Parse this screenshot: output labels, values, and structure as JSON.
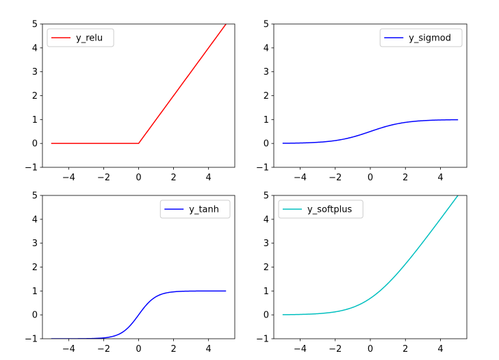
{
  "chart_data": [
    {
      "type": "line",
      "function": "relu",
      "series": [
        {
          "name": "y_relu",
          "color": "#ff0000"
        }
      ],
      "x": [
        -5,
        -4,
        -3,
        -2,
        -1,
        0,
        1,
        2,
        3,
        4,
        5
      ],
      "y": [
        0,
        0,
        0,
        0,
        0,
        0,
        1,
        2,
        3,
        4,
        5
      ],
      "xlim": [
        -5.5,
        5.5
      ],
      "ylim": [
        -1,
        5
      ],
      "xticks": [
        -4,
        -2,
        0,
        2,
        4
      ],
      "yticks": [
        -1,
        0,
        1,
        2,
        3,
        4,
        5
      ],
      "xtick_labels": [
        "−4",
        "−2",
        "0",
        "2",
        "4"
      ],
      "ytick_labels": [
        "−1",
        "0",
        "1",
        "2",
        "3",
        "4",
        "5"
      ],
      "legend_position": "upper-left",
      "grid": false
    },
    {
      "type": "line",
      "function": "sigmoid",
      "series": [
        {
          "name": "y_sigmod",
          "color": "#0000ff"
        }
      ],
      "x": [
        -5,
        -4,
        -3,
        -2,
        -1,
        0,
        1,
        2,
        3,
        4,
        5
      ],
      "y": [
        0.007,
        0.018,
        0.047,
        0.119,
        0.269,
        0.5,
        0.731,
        0.881,
        0.953,
        0.982,
        0.993
      ],
      "xlim": [
        -5.5,
        5.5
      ],
      "ylim": [
        -1,
        5
      ],
      "xticks": [
        -4,
        -2,
        0,
        2,
        4
      ],
      "yticks": [
        -1,
        0,
        1,
        2,
        3,
        4,
        5
      ],
      "xtick_labels": [
        "−4",
        "−2",
        "0",
        "2",
        "4"
      ],
      "ytick_labels": [
        "−1",
        "0",
        "1",
        "2",
        "3",
        "4",
        "5"
      ],
      "legend_position": "upper-right",
      "grid": false
    },
    {
      "type": "line",
      "function": "tanh",
      "series": [
        {
          "name": "y_tanh",
          "color": "#0000ff"
        }
      ],
      "x": [
        -5,
        -4,
        -3,
        -2,
        -1,
        0,
        1,
        2,
        3,
        4,
        5
      ],
      "y": [
        -1.0,
        -0.999,
        -0.995,
        -0.964,
        -0.762,
        0,
        0.762,
        0.964,
        0.995,
        0.999,
        1.0
      ],
      "xlim": [
        -5.5,
        5.5
      ],
      "ylim": [
        -1,
        5
      ],
      "xticks": [
        -4,
        -2,
        0,
        2,
        4
      ],
      "yticks": [
        -1,
        0,
        1,
        2,
        3,
        4,
        5
      ],
      "xtick_labels": [
        "−4",
        "−2",
        "0",
        "2",
        "4"
      ],
      "ytick_labels": [
        "−1",
        "0",
        "1",
        "2",
        "3",
        "4",
        "5"
      ],
      "legend_position": "upper-right",
      "grid": false
    },
    {
      "type": "line",
      "function": "softplus",
      "series": [
        {
          "name": "y_softplus",
          "color": "#00bfbf"
        }
      ],
      "x": [
        -5,
        -4,
        -3,
        -2,
        -1,
        0,
        1,
        2,
        3,
        4,
        5
      ],
      "y": [
        0.007,
        0.018,
        0.049,
        0.127,
        0.313,
        0.693,
        1.313,
        2.127,
        3.049,
        4.018,
        5.007
      ],
      "xlim": [
        -5.5,
        5.5
      ],
      "ylim": [
        -1,
        5
      ],
      "xticks": [
        -4,
        -2,
        0,
        2,
        4
      ],
      "yticks": [
        -1,
        0,
        1,
        2,
        3,
        4,
        5
      ],
      "xtick_labels": [
        "−4",
        "−2",
        "0",
        "2",
        "4"
      ],
      "ytick_labels": [
        "−1",
        "0",
        "1",
        "2",
        "3",
        "4",
        "5"
      ],
      "legend_position": "upper-left",
      "grid": false
    }
  ]
}
